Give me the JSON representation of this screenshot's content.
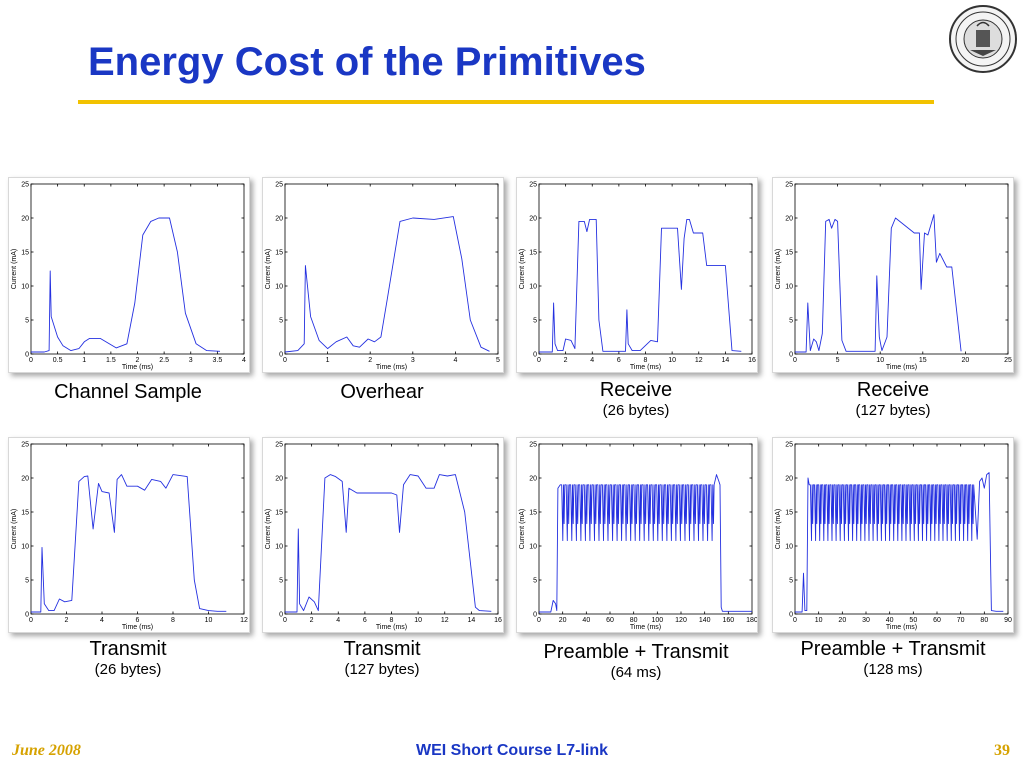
{
  "slide": {
    "title": "Energy Cost of the Primitives",
    "footer_left": "June 2008",
    "footer_center": "WEI Short Course L7-link",
    "footer_right": "39"
  },
  "colors": {
    "title": "#1a37c4",
    "rule": "#f2c200",
    "footer_accent": "#d6a200",
    "trace": "#2430e0"
  },
  "seal_icon": "university-seal-icon",
  "chart_data": [
    {
      "type": "line",
      "caption": "Channel Sample",
      "subcaption": "",
      "xlabel": "Time (ms)",
      "ylabel": "Current (mA)",
      "xlim": [
        0,
        4
      ],
      "ylim": [
        0,
        25
      ],
      "xticks": [
        0,
        0.5,
        1,
        1.5,
        2,
        2.5,
        3,
        3.5,
        4
      ],
      "yticks": [
        0,
        5,
        10,
        15,
        20,
        25
      ],
      "x": [
        0,
        0.25,
        0.34,
        0.36,
        0.38,
        0.5,
        0.6,
        0.75,
        0.9,
        1.0,
        1.1,
        1.3,
        1.45,
        1.6,
        1.8,
        1.95,
        2.1,
        2.25,
        2.4,
        2.6,
        2.75,
        2.9,
        3.1,
        3.3,
        3.55
      ],
      "y": [
        0.3,
        0.3,
        0.5,
        12.2,
        5.5,
        2.5,
        1.2,
        0.5,
        0.8,
        1.8,
        2.3,
        2.3,
        1.6,
        0.9,
        1.5,
        7.5,
        17.5,
        19.5,
        20,
        20,
        15,
        6,
        1.5,
        0.5,
        0.4
      ]
    },
    {
      "type": "line",
      "caption": "Overhear",
      "subcaption": "",
      "xlabel": "Time (ms)",
      "ylabel": "Current (mA)",
      "xlim": [
        0,
        5
      ],
      "ylim": [
        0,
        25
      ],
      "xticks": [
        0,
        1,
        2,
        3,
        4,
        5
      ],
      "yticks": [
        0,
        5,
        10,
        15,
        20,
        25
      ],
      "x": [
        0,
        0.3,
        0.45,
        0.48,
        0.6,
        0.8,
        1.0,
        1.2,
        1.45,
        1.6,
        1.75,
        1.95,
        2.1,
        2.25,
        2.4,
        2.7,
        3.0,
        3.5,
        3.95,
        4.15,
        4.35,
        4.6,
        4.8
      ],
      "y": [
        0.3,
        0.5,
        1.5,
        13,
        5.5,
        2,
        0.8,
        1.8,
        2.5,
        1.2,
        1.0,
        2.2,
        1.8,
        2.5,
        8,
        19.5,
        20,
        19.8,
        20.2,
        14,
        5,
        1,
        0.4
      ]
    },
    {
      "type": "line",
      "caption": "Receive",
      "subcaption": "(26 bytes)",
      "xlabel": "Time (ms)",
      "ylabel": "Current (mA)",
      "xlim": [
        0,
        16
      ],
      "ylim": [
        0,
        25
      ],
      "xticks": [
        0,
        2,
        4,
        6,
        8,
        10,
        12,
        14,
        16
      ],
      "yticks": [
        0,
        5,
        10,
        15,
        20,
        25
      ],
      "x": [
        0,
        1.0,
        1.1,
        1.2,
        1.4,
        1.8,
        2.0,
        2.4,
        2.7,
        3.0,
        3.4,
        3.6,
        3.8,
        4.3,
        4.5,
        4.8,
        6.5,
        6.6,
        6.7,
        7.0,
        7.6,
        8.4,
        8.9,
        9.2,
        10.4,
        10.7,
        10.9,
        11.1,
        11.3,
        11.6,
        12.3,
        12.6,
        12.8,
        14.0,
        14.5,
        15.2
      ],
      "y": [
        0.3,
        0.3,
        7.5,
        1.5,
        0.5,
        0.5,
        2.2,
        2.0,
        0.8,
        19.5,
        19.5,
        18,
        19.8,
        19.8,
        5,
        0.4,
        0.4,
        6.5,
        1.5,
        0.5,
        0.5,
        2.0,
        1.8,
        18.5,
        18.5,
        9.5,
        17,
        19.8,
        19.8,
        17.8,
        17.8,
        13,
        13,
        13,
        0.5,
        0.4
      ]
    },
    {
      "type": "line",
      "caption": "Receive",
      "subcaption": "(127 bytes)",
      "xlabel": "Time (ms)",
      "ylabel": "Current (mA)",
      "xlim": [
        0,
        25
      ],
      "ylim": [
        0,
        25
      ],
      "xticks": [
        0,
        5,
        10,
        15,
        20,
        25
      ],
      "yticks": [
        0,
        5,
        10,
        15,
        20,
        25
      ],
      "x": [
        0,
        1.3,
        1.5,
        1.8,
        2.2,
        2.5,
        2.8,
        3.2,
        3.6,
        4.0,
        4.3,
        4.7,
        5.0,
        5.5,
        6.0,
        9.4,
        9.6,
        9.9,
        10.2,
        10.8,
        11.3,
        11.8,
        14.0,
        14.6,
        14.8,
        15.2,
        15.6,
        16.3,
        16.6,
        17.0,
        17.8,
        18.4,
        19.5
      ],
      "y": [
        0.3,
        0.3,
        7.5,
        0.5,
        2.2,
        1.8,
        0.5,
        3,
        19.5,
        19.8,
        18.5,
        19.8,
        19.5,
        2,
        0.4,
        0.4,
        11.5,
        2.5,
        0.5,
        2.5,
        18.5,
        20,
        17.8,
        17.8,
        9.5,
        17.8,
        17.5,
        20.5,
        13.5,
        14.8,
        12.8,
        12.8,
        0.4
      ]
    },
    {
      "type": "line",
      "caption": "Transmit",
      "subcaption": "(26 bytes)",
      "xlabel": "Time (ms)",
      "ylabel": "Current (mA)",
      "xlim": [
        0,
        12
      ],
      "ylim": [
        0,
        25
      ],
      "xticks": [
        0,
        2,
        4,
        6,
        8,
        10,
        12
      ],
      "yticks": [
        0,
        5,
        10,
        15,
        20,
        25
      ],
      "x": [
        0,
        0.55,
        0.62,
        0.75,
        1.0,
        1.3,
        1.6,
        1.9,
        2.3,
        2.7,
        3.0,
        3.2,
        3.5,
        3.8,
        4.0,
        4.4,
        4.7,
        4.85,
        5.1,
        5.4,
        6.0,
        6.4,
        6.8,
        7.3,
        7.6,
        8.0,
        8.8,
        9.2,
        9.5,
        10.0,
        10.5,
        11.0
      ],
      "y": [
        0.3,
        0.3,
        9.8,
        1.5,
        0.5,
        0.5,
        2.2,
        1.8,
        2.0,
        19.5,
        20.2,
        20.3,
        12.5,
        19.2,
        18,
        17.8,
        12,
        19.8,
        20.5,
        18.8,
        18.8,
        18.2,
        19.8,
        19.5,
        18.5,
        20.5,
        20.2,
        5,
        0.8,
        0.5,
        0.4,
        0.4
      ]
    },
    {
      "type": "line",
      "caption": "Transmit",
      "subcaption": "(127 bytes)",
      "xlabel": "Time (ms)",
      "ylabel": "Current (mA)",
      "xlim": [
        0,
        16
      ],
      "ylim": [
        0,
        25
      ],
      "xticks": [
        0,
        2,
        4,
        6,
        8,
        10,
        12,
        14,
        16
      ],
      "yticks": [
        0,
        5,
        10,
        15,
        20,
        25
      ],
      "x": [
        0,
        0.9,
        1.0,
        1.1,
        1.4,
        1.8,
        2.2,
        2.5,
        3.0,
        3.4,
        3.8,
        4.3,
        4.6,
        4.8,
        5.4,
        8.0,
        8.4,
        8.6,
        8.9,
        9.4,
        10.0,
        10.6,
        11.2,
        11.6,
        12.2,
        12.8,
        13.5,
        14.3,
        14.6,
        15.5
      ],
      "y": [
        0.3,
        0.3,
        12.5,
        1.5,
        0.5,
        2.5,
        1.8,
        0.5,
        20,
        20.5,
        20.2,
        19.5,
        12,
        18.5,
        17.8,
        17.8,
        17.5,
        12,
        19,
        20.5,
        20.3,
        18.5,
        18.5,
        20.5,
        20.3,
        20.5,
        15,
        1,
        0.5,
        0.4
      ]
    },
    {
      "type": "line",
      "caption": "Preamble + Transmit",
      "subcaption": "(64 ms)",
      "xlabel": "Time (ms)",
      "ylabel": "Current (mA)",
      "xlim": [
        0,
        180
      ],
      "ylim": [
        0,
        25
      ],
      "xticks": [
        0,
        20,
        40,
        60,
        80,
        100,
        120,
        140,
        160,
        180
      ],
      "yticks": [
        0,
        5,
        10,
        15,
        20,
        25
      ],
      "x": [
        0,
        10,
        12,
        14,
        15,
        16,
        18
      ],
      "y": [
        0.3,
        0.3,
        2,
        1.5,
        0.5,
        18.5,
        19
      ],
      "oscillation": {
        "start": 18,
        "end": 148,
        "low": 10.8,
        "high": 19,
        "count": 34
      },
      "tail": {
        "x": [
          148,
          150,
          152,
          153,
          154,
          155,
          160,
          180
        ],
        "y": [
          19,
          20.5,
          19.5,
          19,
          1,
          0.4,
          0.4,
          0.4
        ]
      }
    },
    {
      "type": "line",
      "caption": "Preamble + Transmit",
      "subcaption": "(128 ms)",
      "xlabel": "Time (ms)",
      "ylabel": "Current (mA)",
      "xlim": [
        0,
        90
      ],
      "ylim": [
        0,
        25
      ],
      "xticks": [
        0,
        10,
        20,
        30,
        40,
        50,
        60,
        70,
        80,
        90
      ],
      "yticks": [
        0,
        5,
        10,
        15,
        20,
        25
      ],
      "x": [
        0,
        3,
        3.6,
        4.2,
        5.0,
        5.5,
        6.0
      ],
      "y": [
        0.3,
        0.3,
        6,
        0.5,
        0.5,
        20,
        19
      ],
      "oscillation": {
        "start": 6,
        "end": 75.5,
        "low": 10.8,
        "high": 19,
        "count": 40
      },
      "tail": {
        "x": [
          75.5,
          77,
          78,
          79,
          80,
          81,
          82,
          82.5,
          83,
          85,
          88
        ],
        "y": [
          19,
          11,
          19.5,
          20,
          18.5,
          20.5,
          20.8,
          10,
          0.5,
          0.4,
          0.4
        ]
      }
    }
  ]
}
